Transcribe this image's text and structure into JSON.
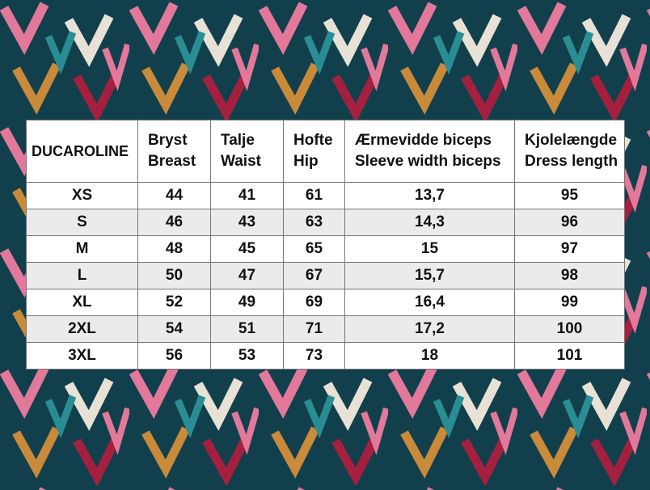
{
  "table": {
    "header": [
      [
        "DUCAROLINE"
      ],
      [
        "Bryst",
        "Breast"
      ],
      [
        "Talje",
        "Waist"
      ],
      [
        "Hofte",
        "Hip"
      ],
      [
        "Ærmevidde biceps",
        "Sleeve width biceps"
      ],
      [
        "Kjolelængde",
        "Dress length"
      ]
    ],
    "rows": [
      [
        "XS",
        "44",
        "41",
        "61",
        "13,7",
        "95"
      ],
      [
        "S",
        "46",
        "43",
        "63",
        "14,3",
        "96"
      ],
      [
        "M",
        "48",
        "45",
        "65",
        "15",
        "97"
      ],
      [
        "L",
        "50",
        "47",
        "67",
        "15,7",
        "98"
      ],
      [
        "XL",
        "52",
        "49",
        "69",
        "16,4",
        "99"
      ],
      [
        "2XL",
        "54",
        "51",
        "71",
        "17,2",
        "100"
      ],
      [
        "3XL",
        "56",
        "53",
        "73",
        "18",
        "101"
      ]
    ]
  }
}
